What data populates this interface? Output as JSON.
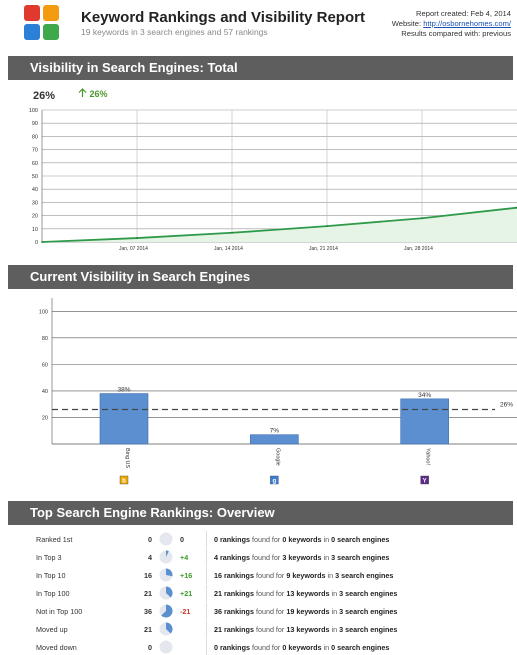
{
  "header": {
    "title": "Keyword Rankings and Visibility Report",
    "subtitle": "19 keywords in 3 search engines and 57 rankings",
    "report_created": "Report created: Feb 4, 2014",
    "website_label": "Website: ",
    "website_url": "http://osbornehomes.com/",
    "compared": "Results compared with: previous"
  },
  "sections": {
    "total": "Visibility in Search Engines: Total",
    "current": "Current Visibility in Search Engines",
    "overview": "Top Search Engine Rankings: Overview"
  },
  "total_visibility": {
    "value": "26%",
    "delta": "26%"
  },
  "chart_data": [
    {
      "type": "area",
      "x": [
        "Jan, 01 2014",
        "Jan, 08 2014",
        "Jan, 14 2014",
        "Jan, 21 2014",
        "Jan, 28 2014",
        "Feb, 04 2014"
      ],
      "xtick_labels": [
        "Jan, 07 2014",
        "Jan, 14 2014",
        "Jan, 21 2014",
        "Jan, 28 2014"
      ],
      "values": [
        0,
        3,
        7,
        12,
        18,
        26
      ],
      "ytick_labels": [
        "0",
        "10",
        "20",
        "30",
        "40",
        "50",
        "60",
        "70",
        "80",
        "90",
        "100"
      ],
      "ylim": [
        0,
        100
      ],
      "grid": true,
      "color": "#2e9a4a"
    },
    {
      "type": "bar",
      "categories": [
        "Bing US",
        "Google",
        "Yahoo!"
      ],
      "values": [
        38,
        7,
        34
      ],
      "data_labels": [
        "38%",
        "7%",
        "34%"
      ],
      "ytick_labels": [
        "20",
        "40",
        "60",
        "80",
        "100"
      ],
      "ylim": [
        0,
        110
      ],
      "average_line": 26,
      "average_label": "26%",
      "grid": true,
      "color": "#5b8fd0"
    }
  ],
  "overview": [
    {
      "label": "Ranked 1st",
      "count": "0",
      "fraction": 0,
      "delta": "0",
      "delta_color": "#333",
      "r": "0 rankings",
      "m": " found for ",
      "k": "0 keywords",
      "i": " in ",
      "e": "0 search engines"
    },
    {
      "label": "In Top 3",
      "count": "4",
      "fraction": 0.07,
      "delta": "+4",
      "delta_color": "#3a9a2a",
      "r": "4 rankings",
      "m": " found for ",
      "k": "3 keywords",
      "i": " in ",
      "e": "3 search engines"
    },
    {
      "label": "In Top 10",
      "count": "16",
      "fraction": 0.28,
      "delta": "+16",
      "delta_color": "#3a9a2a",
      "r": "16 rankings",
      "m": " found for ",
      "k": "9 keywords",
      "i": " in ",
      "e": "3 search engines"
    },
    {
      "label": "In Top 100",
      "count": "21",
      "fraction": 0.37,
      "delta": "+21",
      "delta_color": "#3a9a2a",
      "r": "21 rankings",
      "m": " found for ",
      "k": "13 keywords",
      "i": " in ",
      "e": "3 search engines"
    },
    {
      "label": "Not in Top 100",
      "count": "36",
      "fraction": 0.63,
      "delta": "-21",
      "delta_color": "#c0392b",
      "r": "36 rankings",
      "m": " found for ",
      "k": "19 keywords",
      "i": " in ",
      "e": "3 search engines"
    },
    {
      "label": "Moved up",
      "count": "21",
      "fraction": 0.37,
      "delta": "",
      "delta_color": "#333",
      "r": "21 rankings",
      "m": " found for ",
      "k": "13 keywords",
      "i": " in ",
      "e": "3 search engines"
    },
    {
      "label": "Moved down",
      "count": "0",
      "fraction": 0,
      "delta": "",
      "delta_color": "#333",
      "r": "0 rankings",
      "m": " found for ",
      "k": "0 keywords",
      "i": " in ",
      "e": "0 search engines"
    }
  ],
  "colors": {
    "logo": [
      "#e03a2f",
      "#f39c12",
      "#2b7fd6",
      "#3ea84a"
    ],
    "section_bar": "#5e5e5e"
  },
  "icons": [
    "bing-icon",
    "google-icon",
    "yahoo-icon"
  ]
}
